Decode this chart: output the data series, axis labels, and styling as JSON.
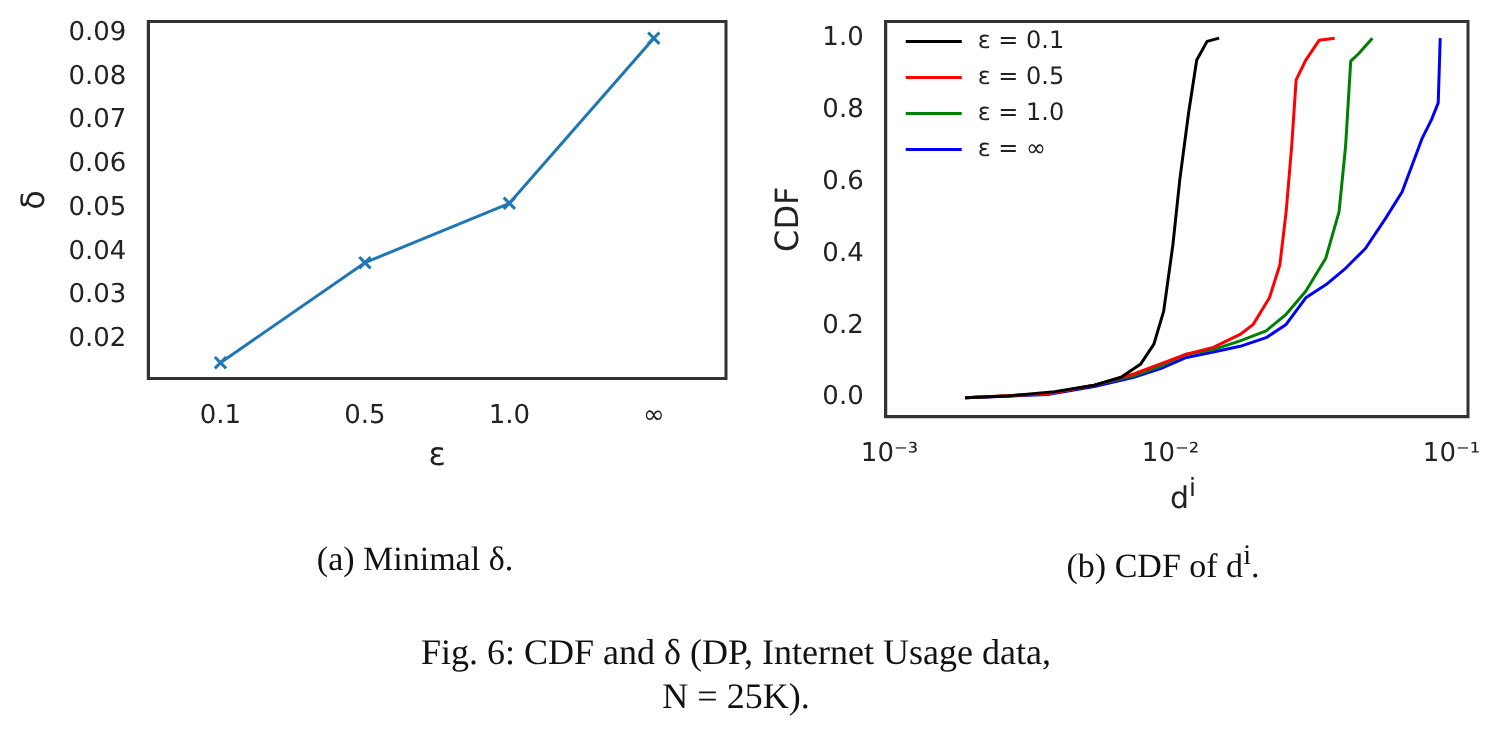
{
  "chart_data": [
    {
      "type": "line",
      "xlabel": "ε",
      "ylabel": "δ",
      "categories": [
        "0.1",
        "0.5",
        "1.0",
        "∞"
      ],
      "series": [
        {
          "color": "#1f77b4",
          "values": [
            0.0146,
            0.0375,
            0.0511,
            0.0889
          ]
        }
      ],
      "ylim": [
        0.011,
        0.0927
      ],
      "yticks": [
        0.02,
        0.03,
        0.04,
        0.05,
        0.06,
        0.07,
        0.08,
        0.09
      ],
      "marker": "cross",
      "grid": false,
      "legend": false,
      "annotations": [
        "(a) Minimal δ."
      ]
    },
    {
      "type": "line",
      "xlabel": "d$^{i}$",
      "ylabel": "CDF",
      "log": "x",
      "grid": false,
      "legend": "top left",
      "marker": "none",
      "xlim": [
        0.00097,
        0.1145
      ],
      "xticks": [
        {
          "value": 0.001,
          "label": "10⁻³"
        },
        {
          "value": 0.01,
          "label": "10⁻²"
        },
        {
          "value": 0.1,
          "label": "10⁻¹"
        }
      ],
      "ylim": [
        -0.053,
        1.046
      ],
      "yticks": [
        {
          "value": 0,
          "label": "0.0"
        },
        0.2,
        0.4,
        0.6,
        0.8,
        {
          "value": 1,
          "label": "1.0"
        }
      ],
      "series": [
        {
          "name": "ε = 0.1",
          "color": "#000000",
          "x": [
            0.00186,
            0.00265,
            0.00387,
            0.00536,
            0.00667,
            0.00784,
            0.00873,
            0.00946,
            0.0102,
            0.0108,
            0.0116,
            0.0124,
            0.0135,
            0.0149
          ],
          "values": [
            0,
            0.005,
            0.017,
            0.035,
            0.057,
            0.094,
            0.149,
            0.241,
            0.425,
            0.608,
            0.792,
            0.939,
            0.991,
            1.0
          ]
        },
        {
          "name": "ε = 0.5",
          "color": "#ff0000",
          "x": [
            0.00186,
            0.00365,
            0.00536,
            0.0074,
            0.00922,
            0.0114,
            0.0142,
            0.0177,
            0.0197,
            0.0225,
            0.0245,
            0.0258,
            0.027,
            0.028,
            0.0303,
            0.0338,
            0.0384
          ],
          "values": [
            0,
            0.011,
            0.035,
            0.066,
            0.094,
            0.121,
            0.14,
            0.176,
            0.204,
            0.278,
            0.369,
            0.517,
            0.7,
            0.884,
            0.939,
            0.994,
            1.0
          ]
        },
        {
          "name": "ε = 1.0",
          "color": "#008000",
          "x": [
            0.00186,
            0.00365,
            0.00536,
            0.0074,
            0.00922,
            0.0114,
            0.0142,
            0.0177,
            0.0219,
            0.0258,
            0.0303,
            0.0357,
            0.0398,
            0.042,
            0.0438,
            0.0469,
            0.0523
          ],
          "values": [
            0,
            0.011,
            0.035,
            0.061,
            0.088,
            0.121,
            0.134,
            0.158,
            0.186,
            0.232,
            0.296,
            0.388,
            0.517,
            0.7,
            0.936,
            0.958,
            1.0
          ]
        },
        {
          "name": "ε = ∞",
          "color": "#0000ff",
          "x": [
            0.00186,
            0.00365,
            0.00536,
            0.0074,
            0.00922,
            0.0114,
            0.0142,
            0.0177,
            0.0219,
            0.0258,
            0.0303,
            0.0357,
            0.042,
            0.0494,
            0.0582,
            0.0667,
            0.0723,
            0.0784,
            0.085,
            0.0897,
            0.0912
          ],
          "values": [
            0,
            0.009,
            0.031,
            0.057,
            0.081,
            0.112,
            0.127,
            0.143,
            0.167,
            0.204,
            0.278,
            0.314,
            0.36,
            0.415,
            0.498,
            0.572,
            0.645,
            0.719,
            0.774,
            0.82,
            1.0
          ]
        }
      ],
      "annotations": [
        "(b) CDF of d$^{i}$.",
        "Fig. 6: CDF and δ (DP, Internet Usage data, N = 25K)."
      ]
    }
  ]
}
